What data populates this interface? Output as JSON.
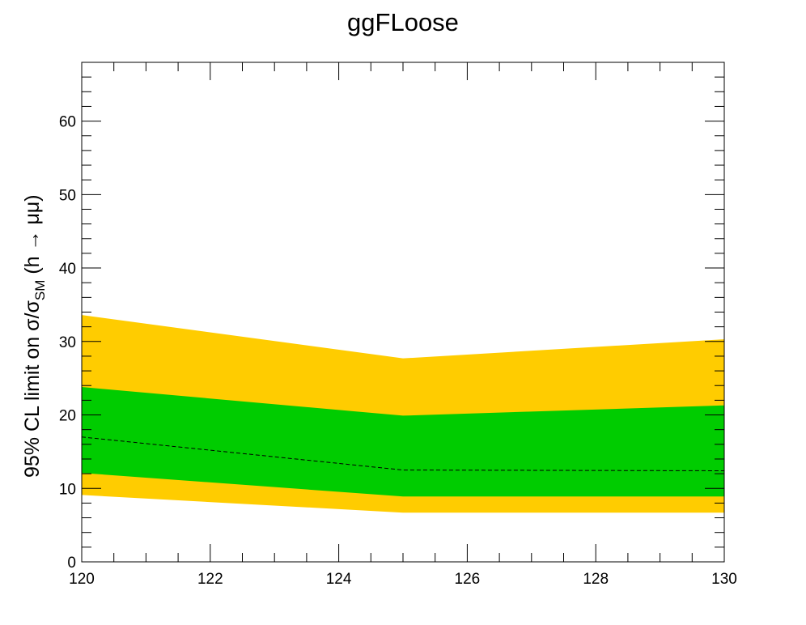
{
  "chart_data": {
    "type": "area",
    "title": "ggFLoose",
    "xlabel": "",
    "ylabel": {
      "prefix": "95% CL limit on σ/σ",
      "subscript": "SM",
      "suffix": " (h → μμ)"
    },
    "xlim": [
      120,
      130
    ],
    "ylim": [
      0,
      68
    ],
    "x_ticks": [
      120,
      122,
      124,
      126,
      128,
      130
    ],
    "y_ticks": [
      0,
      10,
      20,
      30,
      40,
      50,
      60
    ],
    "x": [
      120,
      125,
      130
    ],
    "bands": [
      {
        "role": "2sigma",
        "color": "#ffcc00",
        "lower": [
          9.1,
          6.7,
          6.7
        ],
        "upper": [
          33.6,
          27.7,
          30.3
        ]
      },
      {
        "role": "1sigma",
        "color": "#00cc00",
        "lower": [
          12.1,
          8.9,
          8.9
        ],
        "upper": [
          23.8,
          19.9,
          21.3
        ]
      }
    ],
    "expected": {
      "values": [
        17.0,
        12.5,
        12.4
      ],
      "color": "#000000",
      "style": "dashed"
    },
    "grid": false
  }
}
